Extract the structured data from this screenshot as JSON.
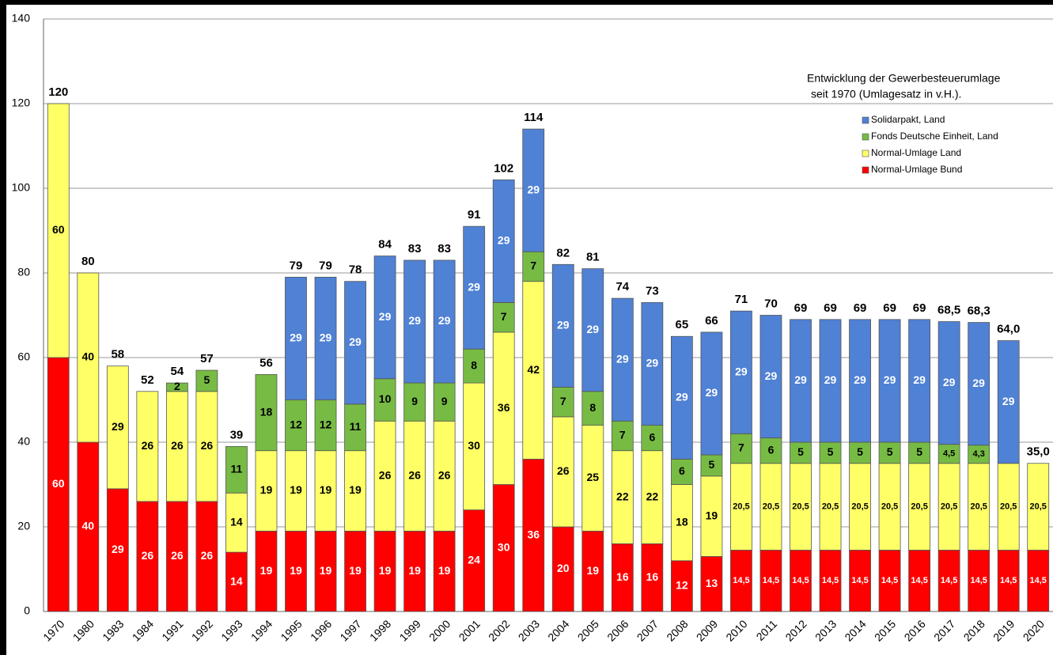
{
  "chart_data": {
    "type": "stacked_bar",
    "title": [
      "Entwicklung der Gewerbesteuerumlage",
      "seit 1970 (Umlagesatz in v.H.)."
    ],
    "categories": [
      "1970",
      "1980",
      "1983",
      "1984",
      "1991",
      "1992",
      "1993",
      "1994",
      "1995",
      "1996",
      "1997",
      "1998",
      "1999",
      "2000",
      "2001",
      "2002",
      "2003",
      "2004",
      "2005",
      "2006",
      "2007",
      "2008",
      "2009",
      "2010",
      "2011",
      "2012",
      "2013",
      "2014",
      "2015",
      "2016",
      "2017",
      "2018",
      "2019",
      "2020"
    ],
    "series": [
      {
        "name": "Normal-Umlage Bund",
        "color": "#ff0000",
        "label_color": "#ffffff",
        "values": [
          60,
          40,
          29,
          26,
          26,
          26,
          14,
          19,
          19,
          19,
          19,
          19,
          19,
          19,
          24,
          30,
          36,
          20,
          19,
          16,
          16,
          12,
          13,
          14.5,
          14.5,
          14.5,
          14.5,
          14.5,
          14.5,
          14.5,
          14.5,
          14.5,
          14.5,
          14.5
        ],
        "value_labels": [
          "60",
          "40",
          "29",
          "26",
          "26",
          "26",
          "14",
          "19",
          "19",
          "19",
          "19",
          "19",
          "19",
          "19",
          "24",
          "30",
          "36",
          "20",
          "19",
          "16",
          "16",
          "12",
          "13",
          "14,5",
          "14,5",
          "14,5",
          "14,5",
          "14,5",
          "14,5",
          "14,5",
          "14,5",
          "14,5",
          "14,5",
          "14,5"
        ]
      },
      {
        "name": "Normal-Umlage Land",
        "color": "#ffff66",
        "label_color": "#000000",
        "values": [
          60,
          40,
          29,
          26,
          26,
          26,
          14,
          19,
          19,
          19,
          19,
          26,
          26,
          26,
          30,
          36,
          42,
          26,
          25,
          22,
          22,
          18,
          19,
          20.5,
          20.5,
          20.5,
          20.5,
          20.5,
          20.5,
          20.5,
          20.5,
          20.5,
          20.5,
          20.5
        ],
        "value_labels": [
          "60",
          "40",
          "29",
          "26",
          "26",
          "26",
          "14",
          "19",
          "19",
          "19",
          "19",
          "26",
          "26",
          "26",
          "30",
          "36",
          "42",
          "26",
          "25",
          "22",
          "22",
          "18",
          "19",
          "20,5",
          "20,5",
          "20,5",
          "20,5",
          "20,5",
          "20,5",
          "20,5",
          "20,5",
          "20,5",
          "20,5",
          "20,5"
        ]
      },
      {
        "name": "Fonds Deutsche Einheit, Land",
        "color": "#77bb44",
        "label_color": "#000000",
        "values": [
          null,
          null,
          null,
          null,
          2,
          5,
          11,
          18,
          12,
          12,
          11,
          10,
          9,
          9,
          8,
          7,
          7,
          7,
          8,
          7,
          6,
          6,
          5,
          7,
          6,
          5,
          5,
          5,
          5,
          5,
          4.5,
          4.3,
          null,
          null
        ],
        "value_labels": [
          null,
          null,
          null,
          null,
          "2",
          "5",
          "11",
          "18",
          "12",
          "12",
          "11",
          "10",
          "9",
          "9",
          "8",
          "7",
          "7",
          "7",
          "8",
          "7",
          "6",
          "6",
          "5",
          "7",
          "6",
          "5",
          "5",
          "5",
          "5",
          "5",
          "4,5",
          "4,3",
          null,
          null
        ]
      },
      {
        "name": "Solidarpakt, Land",
        "color": "#4f81d4",
        "label_color": "#ffffff",
        "values": [
          null,
          null,
          null,
          null,
          null,
          null,
          null,
          null,
          29,
          29,
          29,
          29,
          29,
          29,
          29,
          29,
          29,
          29,
          29,
          29,
          29,
          29,
          29,
          29,
          29,
          29,
          29,
          29,
          29,
          29,
          29,
          29,
          29,
          null
        ],
        "value_labels": [
          null,
          null,
          null,
          null,
          null,
          null,
          null,
          null,
          "29",
          "29",
          "29",
          "29",
          "29",
          "29",
          "29",
          "29",
          "29",
          "29",
          "29",
          "29",
          "29",
          "29",
          "29",
          "29",
          "29",
          "29",
          "29",
          "29",
          "29",
          "29",
          "29",
          "29",
          "29",
          null
        ]
      }
    ],
    "totals": {
      "values": [
        120,
        80,
        58,
        52,
        54,
        57,
        39,
        56,
        79,
        79,
        78,
        84,
        83,
        83,
        91,
        102,
        114,
        82,
        81,
        74,
        73,
        65,
        66,
        71,
        70,
        69,
        69,
        69,
        69,
        69,
        68.5,
        68.3,
        64.0,
        35.0
      ],
      "value_labels": [
        "120",
        "80",
        "58",
        "52",
        "54",
        "57",
        "39",
        "56",
        "79",
        "79",
        "78",
        "84",
        "83",
        "83",
        "91",
        "102",
        "114",
        "82",
        "81",
        "74",
        "73",
        "65",
        "66",
        "71",
        "70",
        "69",
        "69",
        "69",
        "69",
        "69",
        "68,5",
        "68,3",
        "64,0",
        "35,0"
      ]
    },
    "ylim": [
      0,
      140
    ],
    "yticks": [
      0,
      20,
      40,
      60,
      80,
      100,
      120,
      140
    ],
    "grid": true
  }
}
